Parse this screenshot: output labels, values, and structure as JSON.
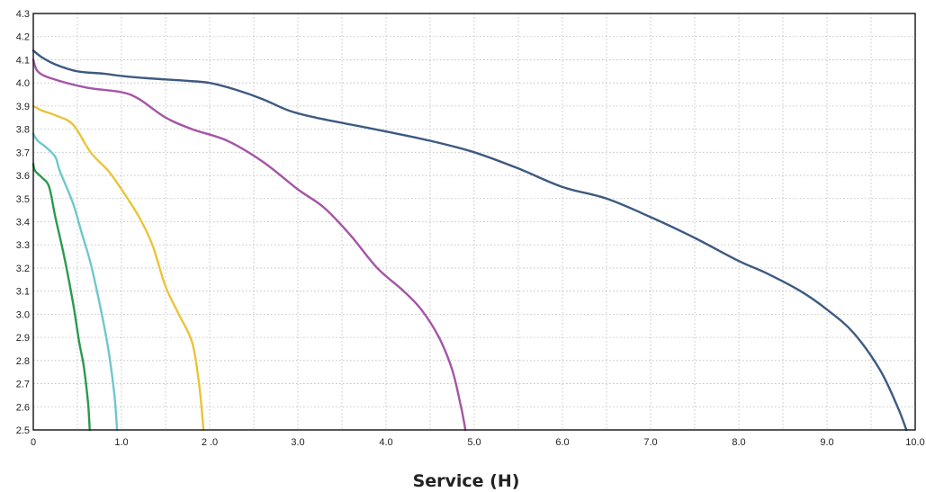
{
  "chart_data": {
    "type": "line",
    "title": "",
    "xlabel": "Service (H)",
    "ylabel": "",
    "xlim": [
      0,
      10
    ],
    "ylim": [
      2.5,
      4.3
    ],
    "grid": true,
    "x_ticks": [
      "0",
      "1.0",
      "2 .0",
      "3.0",
      "4.0",
      "5.0",
      "6.0",
      "7.0",
      "8.0",
      "9.0",
      "10.0"
    ],
    "y_ticks": [
      "2.5",
      "2.6",
      "2.7",
      "2.8",
      "2.9",
      "3.0",
      "3.1",
      "3.2",
      "3.3",
      "3.4",
      "3.5",
      "3.6",
      "3.7",
      "3.8",
      "3.9",
      "4.0",
      "4.1",
      "4.2",
      "4.3"
    ],
    "series": [
      {
        "color": "#3d5a80",
        "points": [
          [
            0,
            4.14
          ],
          [
            0.1,
            4.11
          ],
          [
            0.25,
            4.08
          ],
          [
            0.5,
            4.05
          ],
          [
            0.8,
            4.04
          ],
          [
            1.0,
            4.03
          ],
          [
            1.3,
            4.02
          ],
          [
            1.7,
            4.01
          ],
          [
            2.0,
            4.0
          ],
          [
            2.3,
            3.97
          ],
          [
            2.6,
            3.93
          ],
          [
            2.9,
            3.88
          ],
          [
            3.2,
            3.85
          ],
          [
            3.6,
            3.82
          ],
          [
            4.0,
            3.79
          ],
          [
            4.5,
            3.75
          ],
          [
            5.0,
            3.7
          ],
          [
            5.5,
            3.63
          ],
          [
            6.0,
            3.55
          ],
          [
            6.5,
            3.5
          ],
          [
            7.0,
            3.42
          ],
          [
            7.5,
            3.33
          ],
          [
            8.0,
            3.23
          ],
          [
            8.3,
            3.18
          ],
          [
            8.7,
            3.1
          ],
          [
            9.0,
            3.02
          ],
          [
            9.3,
            2.92
          ],
          [
            9.6,
            2.76
          ],
          [
            9.8,
            2.6
          ],
          [
            9.9,
            2.5
          ]
        ]
      },
      {
        "color": "#a455a5",
        "points": [
          [
            0,
            4.1
          ],
          [
            0.05,
            4.05
          ],
          [
            0.2,
            4.02
          ],
          [
            0.6,
            3.98
          ],
          [
            1.0,
            3.96
          ],
          [
            1.2,
            3.93
          ],
          [
            1.5,
            3.85
          ],
          [
            1.8,
            3.8
          ],
          [
            2.2,
            3.75
          ],
          [
            2.6,
            3.66
          ],
          [
            3.0,
            3.54
          ],
          [
            3.3,
            3.46
          ],
          [
            3.6,
            3.34
          ],
          [
            3.9,
            3.2
          ],
          [
            4.2,
            3.1
          ],
          [
            4.4,
            3.02
          ],
          [
            4.6,
            2.9
          ],
          [
            4.75,
            2.76
          ],
          [
            4.85,
            2.6
          ],
          [
            4.9,
            2.5
          ]
        ]
      },
      {
        "color": "#eac43a",
        "points": [
          [
            0,
            3.9
          ],
          [
            0.1,
            3.88
          ],
          [
            0.25,
            3.86
          ],
          [
            0.45,
            3.82
          ],
          [
            0.65,
            3.7
          ],
          [
            0.85,
            3.62
          ],
          [
            1.0,
            3.54
          ],
          [
            1.2,
            3.42
          ],
          [
            1.35,
            3.3
          ],
          [
            1.5,
            3.12
          ],
          [
            1.65,
            3.0
          ],
          [
            1.8,
            2.88
          ],
          [
            1.88,
            2.7
          ],
          [
            1.93,
            2.5
          ]
        ]
      },
      {
        "color": "#6ec8cc",
        "points": [
          [
            0,
            3.78
          ],
          [
            0.05,
            3.75
          ],
          [
            0.15,
            3.72
          ],
          [
            0.25,
            3.68
          ],
          [
            0.3,
            3.62
          ],
          [
            0.45,
            3.48
          ],
          [
            0.55,
            3.35
          ],
          [
            0.65,
            3.22
          ],
          [
            0.75,
            3.05
          ],
          [
            0.85,
            2.85
          ],
          [
            0.92,
            2.65
          ],
          [
            0.95,
            2.5
          ]
        ]
      },
      {
        "color": "#2a9a4e",
        "points": [
          [
            0,
            3.65
          ],
          [
            0.02,
            3.62
          ],
          [
            0.1,
            3.59
          ],
          [
            0.18,
            3.55
          ],
          [
            0.25,
            3.42
          ],
          [
            0.35,
            3.25
          ],
          [
            0.45,
            3.05
          ],
          [
            0.52,
            2.88
          ],
          [
            0.57,
            2.78
          ],
          [
            0.62,
            2.62
          ],
          [
            0.64,
            2.5
          ]
        ]
      }
    ]
  }
}
